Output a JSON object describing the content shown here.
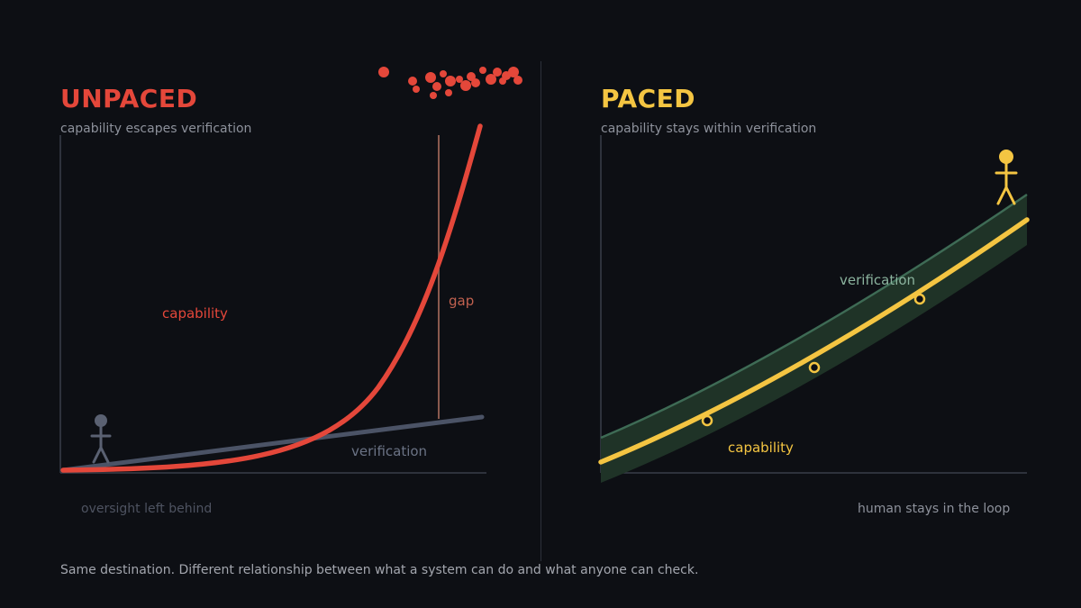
{
  "left": {
    "title": "UNPACED",
    "subtitle": "capability escapes verification",
    "labels": {
      "capability": "capability",
      "verification": "verification",
      "gap": "gap"
    },
    "caption": "oversight left behind"
  },
  "right": {
    "title": "PACED",
    "subtitle": "capability stays within verification",
    "labels": {
      "verification": "verification",
      "capability": "capability"
    },
    "caption": "human stays in the loop"
  },
  "footer": "Same destination. Different relationship between what a system can do and what anyone can check.",
  "colors": {
    "background": "#0d0f14",
    "unpaced_accent": "#e4473a",
    "paced_accent": "#f4c542",
    "verification_line": "#4b5366",
    "verification_band": "#1f3327",
    "verification_band_edge": "#3e6b55",
    "gap_line": "#8a5a4e",
    "axis": "#3a3f4a"
  },
  "icons": {
    "left_figure": "stick-figure-icon",
    "right_figure": "stick-figure-icon",
    "debris": "scattered-dots-icon",
    "checkpoints": "checkpoint-icon"
  }
}
